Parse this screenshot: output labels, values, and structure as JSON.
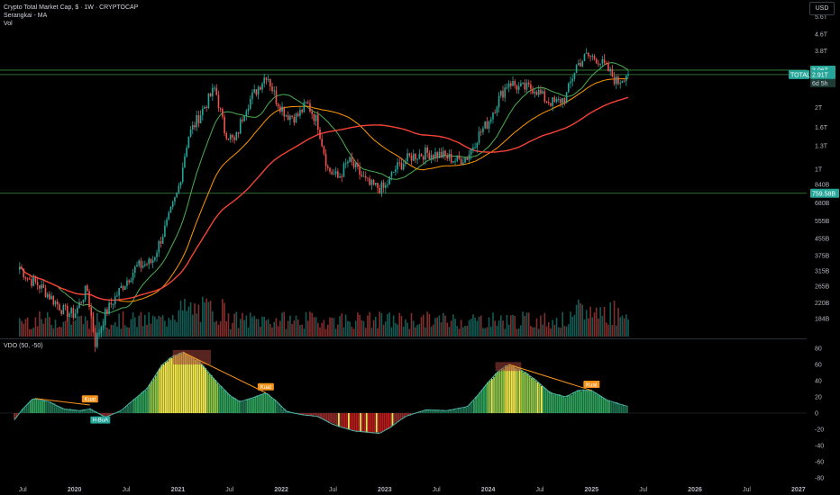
{
  "header": {
    "title": "Crypto Total Market Cap, $ · 1W · CRYPTOCAP",
    "indicator1": "Serangkai - MA",
    "indicator2": "Vol",
    "currency": "USD",
    "subpanel_title": "VDO (50, -50)"
  },
  "colors": {
    "up": "#26a69a",
    "down": "#ef5350",
    "ma_fast": "#4caf50",
    "ma_mid": "#ff9800",
    "ma_slow": "#f44336",
    "hline": "#4caf50",
    "tag_strong": "#f7931a"
  },
  "chart_data": [
    {
      "type": "candlestick",
      "yscale": "log",
      "ylim": [
        150000000000,
        6500000000000
      ],
      "price_ticks": [
        "5.6T",
        "4.6T",
        "3.8T",
        "2T",
        "1.6T",
        "1.3T",
        "1T",
        "840B",
        "680B",
        "555B",
        "455B",
        "375B",
        "315B",
        "265B",
        "220B",
        "184B"
      ],
      "x_ticks": [
        "Jul",
        "2020",
        "Jul",
        "2021",
        "Jul",
        "2022",
        "Jul",
        "2023",
        "Jul",
        "2024",
        "Jul",
        "2025",
        "Jul",
        "2026",
        "Jul",
        "2027"
      ],
      "markers": {
        "price_tag": "3.06T",
        "symbol_tag": "TOTAL",
        "symbol_value": "2.91T",
        "countdown": "6d 5h",
        "level_tag": "759.58B"
      },
      "horizontal_lines": [
        3.06,
        2.91,
        0.75958
      ],
      "anchors": [
        {
          "t": 2019.47,
          "v": 0.33
        },
        {
          "t": 2019.55,
          "v": 0.29
        },
        {
          "t": 2019.65,
          "v": 0.27
        },
        {
          "t": 2019.75,
          "v": 0.24
        },
        {
          "t": 2019.9,
          "v": 0.2
        },
        {
          "t": 2020.0,
          "v": 0.193
        },
        {
          "t": 2020.12,
          "v": 0.26
        },
        {
          "t": 2020.2,
          "v": 0.14
        },
        {
          "t": 2020.3,
          "v": 0.195
        },
        {
          "t": 2020.45,
          "v": 0.26
        },
        {
          "t": 2020.6,
          "v": 0.33
        },
        {
          "t": 2020.75,
          "v": 0.35
        },
        {
          "t": 2020.9,
          "v": 0.55
        },
        {
          "t": 2021.0,
          "v": 0.78
        },
        {
          "t": 2021.1,
          "v": 1.45
        },
        {
          "t": 2021.25,
          "v": 2.0
        },
        {
          "t": 2021.36,
          "v": 2.5
        },
        {
          "t": 2021.45,
          "v": 1.55
        },
        {
          "t": 2021.55,
          "v": 1.35
        },
        {
          "t": 2021.65,
          "v": 2.0
        },
        {
          "t": 2021.75,
          "v": 2.4
        },
        {
          "t": 2021.86,
          "v": 2.95
        },
        {
          "t": 2021.95,
          "v": 2.2
        },
        {
          "t": 2022.05,
          "v": 1.85
        },
        {
          "t": 2022.15,
          "v": 1.8
        },
        {
          "t": 2022.25,
          "v": 2.1
        },
        {
          "t": 2022.35,
          "v": 1.7
        },
        {
          "t": 2022.45,
          "v": 1.0
        },
        {
          "t": 2022.55,
          "v": 0.9
        },
        {
          "t": 2022.65,
          "v": 1.1
        },
        {
          "t": 2022.75,
          "v": 0.96
        },
        {
          "t": 2022.85,
          "v": 0.83
        },
        {
          "t": 2023.0,
          "v": 0.8
        },
        {
          "t": 2023.1,
          "v": 1.0
        },
        {
          "t": 2023.25,
          "v": 1.15
        },
        {
          "t": 2023.4,
          "v": 1.2
        },
        {
          "t": 2023.55,
          "v": 1.17
        },
        {
          "t": 2023.7,
          "v": 1.1
        },
        {
          "t": 2023.8,
          "v": 1.15
        },
        {
          "t": 2023.9,
          "v": 1.45
        },
        {
          "t": 2024.0,
          "v": 1.7
        },
        {
          "t": 2024.1,
          "v": 2.2
        },
        {
          "t": 2024.2,
          "v": 2.7
        },
        {
          "t": 2024.3,
          "v": 2.5
        },
        {
          "t": 2024.45,
          "v": 2.5
        },
        {
          "t": 2024.55,
          "v": 2.2
        },
        {
          "t": 2024.65,
          "v": 2.1
        },
        {
          "t": 2024.75,
          "v": 2.25
        },
        {
          "t": 2024.85,
          "v": 3.2
        },
        {
          "t": 2024.95,
          "v": 3.6
        },
        {
          "t": 2025.05,
          "v": 3.5
        },
        {
          "t": 2025.15,
          "v": 3.1
        },
        {
          "t": 2025.25,
          "v": 2.65
        },
        {
          "t": 2025.32,
          "v": 2.9
        },
        {
          "t": 2025.36,
          "v": 3.0
        }
      ]
    },
    {
      "type": "area",
      "name": "VDO (50, -50)",
      "ylim": [
        -90,
        90
      ],
      "y_ticks": [
        "80",
        "60",
        "40",
        "20",
        "0",
        "-20",
        "-40",
        "-60",
        "-80"
      ],
      "labels": {
        "strong_tag": "Kuat",
        "weak_tag": "H-BuA"
      },
      "anchors": [
        {
          "t": 2019.42,
          "v": -8
        },
        {
          "t": 2019.5,
          "v": 5
        },
        {
          "t": 2019.6,
          "v": 18
        },
        {
          "t": 2019.75,
          "v": 14
        },
        {
          "t": 2019.9,
          "v": 5
        },
        {
          "t": 2020.05,
          "v": 3
        },
        {
          "t": 2020.15,
          "v": 5
        },
        {
          "t": 2020.3,
          "v": -5
        },
        {
          "t": 2020.45,
          "v": 3
        },
        {
          "t": 2020.55,
          "v": 14
        },
        {
          "t": 2020.7,
          "v": 30
        },
        {
          "t": 2020.85,
          "v": 60
        },
        {
          "t": 2020.95,
          "v": 70
        },
        {
          "t": 2021.05,
          "v": 75
        },
        {
          "t": 2021.2,
          "v": 65
        },
        {
          "t": 2021.35,
          "v": 42
        },
        {
          "t": 2021.5,
          "v": 22
        },
        {
          "t": 2021.6,
          "v": 14
        },
        {
          "t": 2021.75,
          "v": 20
        },
        {
          "t": 2021.85,
          "v": 25
        },
        {
          "t": 2021.95,
          "v": 15
        },
        {
          "t": 2022.05,
          "v": 2
        },
        {
          "t": 2022.2,
          "v": -2
        },
        {
          "t": 2022.35,
          "v": -4
        },
        {
          "t": 2022.5,
          "v": -14
        },
        {
          "t": 2022.7,
          "v": -22
        },
        {
          "t": 2022.95,
          "v": -25
        },
        {
          "t": 2023.05,
          "v": -18
        },
        {
          "t": 2023.2,
          "v": -4
        },
        {
          "t": 2023.4,
          "v": 4
        },
        {
          "t": 2023.6,
          "v": 3
        },
        {
          "t": 2023.8,
          "v": 8
        },
        {
          "t": 2023.9,
          "v": 22
        },
        {
          "t": 2024.0,
          "v": 38
        },
        {
          "t": 2024.1,
          "v": 52
        },
        {
          "t": 2024.2,
          "v": 60
        },
        {
          "t": 2024.3,
          "v": 55
        },
        {
          "t": 2024.45,
          "v": 42
        },
        {
          "t": 2024.6,
          "v": 25
        },
        {
          "t": 2024.75,
          "v": 20
        },
        {
          "t": 2024.87,
          "v": 28
        },
        {
          "t": 2025.0,
          "v": 28
        },
        {
          "t": 2025.15,
          "v": 16
        },
        {
          "t": 2025.3,
          "v": 10
        },
        {
          "t": 2025.36,
          "v": 8
        }
      ]
    }
  ]
}
